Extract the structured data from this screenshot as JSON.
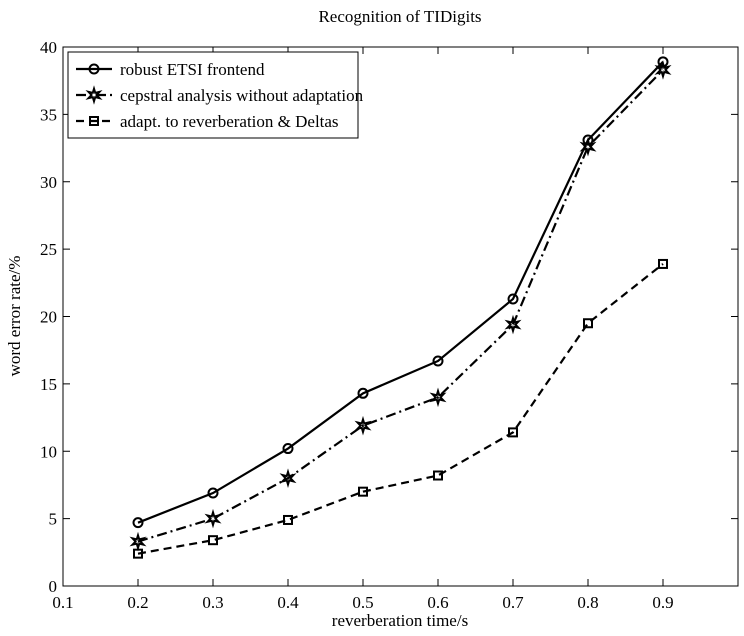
{
  "chart_data": {
    "type": "line",
    "title": "Recognition of TIDigits",
    "xlabel": "reverberation time/s",
    "ylabel": "word error rate/%",
    "x": [
      0.2,
      0.3,
      0.4,
      0.5,
      0.6,
      0.7,
      0.8,
      0.9
    ],
    "series": [
      {
        "name": "robust ETSI frontend",
        "color": "#000000",
        "dash": "solid",
        "marker": "circle",
        "values": [
          4.7,
          6.9,
          10.2,
          14.3,
          16.7,
          21.3,
          33.1,
          38.9
        ]
      },
      {
        "name": "cepstral analysis without adaptation",
        "color": "#000000",
        "dash": "dashdot",
        "marker": "star",
        "values": [
          3.3,
          5.0,
          8.0,
          11.9,
          14.0,
          19.4,
          32.6,
          38.3
        ]
      },
      {
        "name": "adapt. to reverberation & Deltas",
        "color": "#000000",
        "dash": "dashed",
        "marker": "square",
        "values": [
          2.4,
          3.4,
          4.9,
          7.0,
          8.2,
          11.4,
          19.5,
          23.9
        ]
      }
    ],
    "xlim": [
      0.1,
      1
    ],
    "xticks": [
      0.1,
      0.2,
      0.3,
      0.4,
      0.5,
      0.6,
      0.7,
      0.8,
      0.9
    ],
    "ylim": [
      0,
      40
    ],
    "yticks": [
      0,
      5,
      10,
      15,
      20,
      25,
      30,
      35,
      40
    ],
    "grid": false,
    "legend": "upper left"
  }
}
